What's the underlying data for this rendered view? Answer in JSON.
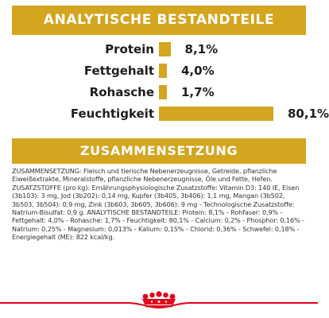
{
  "colors": {
    "accent": "#d4a51e",
    "brand_red": "#e2001a",
    "text": "#1e1e1e"
  },
  "analysis": {
    "title": "ANALYTISCHE BESTANDTEILE",
    "nutrients": [
      {
        "label": "Protein",
        "value_text": "8,1%",
        "value": 8.1
      },
      {
        "label": "Fettgehalt",
        "value_text": "4,0%",
        "value": 4.0
      },
      {
        "label": "Rohasche",
        "value_text": "1,7%",
        "value": 1.7
      },
      {
        "label": "Feuchtigkeit",
        "value_text": "80,1%",
        "value": 80.1
      }
    ]
  },
  "composition": {
    "title": "ZUSAMMENSETZUNG",
    "text": "ZUSAMMENSETZUNG: Fleisch und tierische Nebenerzeugnisse, Getreide, pflanzliche Eiweißextrakte, Mineralstoffe, pflanzliche Nebenerzeugnisse, Öle und Fette, Hefen. ZUSATZSTOFFE (pro kg): Ernährungsphysiologische Zusatzstoffe: Vitamin D3: 140 IE, Eisen (3b103): 3 mg, Jod (3b202): 0,14 mg, Kupfer (3b405, 3b406): 1,1 mg, Mangan (3b502, 3b503, 3b504): 0,9 mg, Zink (3b603, 3b605, 3b606): 9 mg - Technologische Zusatzstoffe: Natrium-Bisulfat: 0,9 g. ANALYTISCHE BESTANDTEILE: Protein: 8,1% - Rohfaser: 0,9% - Fettgehalt: 4,0% - Rohasche: 1,7% - Feuchtigkeit: 80,1% - Calcium: 0,2% - Phosphor: 0,16% - Natrium: 0,25% - Magnesium: 0,013% - Kalium: 0,15% - Chlorid: 0,36% - Schwefel: 0,18% - Energiegehalt (ME): 822 kcal/kg."
  },
  "logo": {
    "name": "crown-icon"
  }
}
